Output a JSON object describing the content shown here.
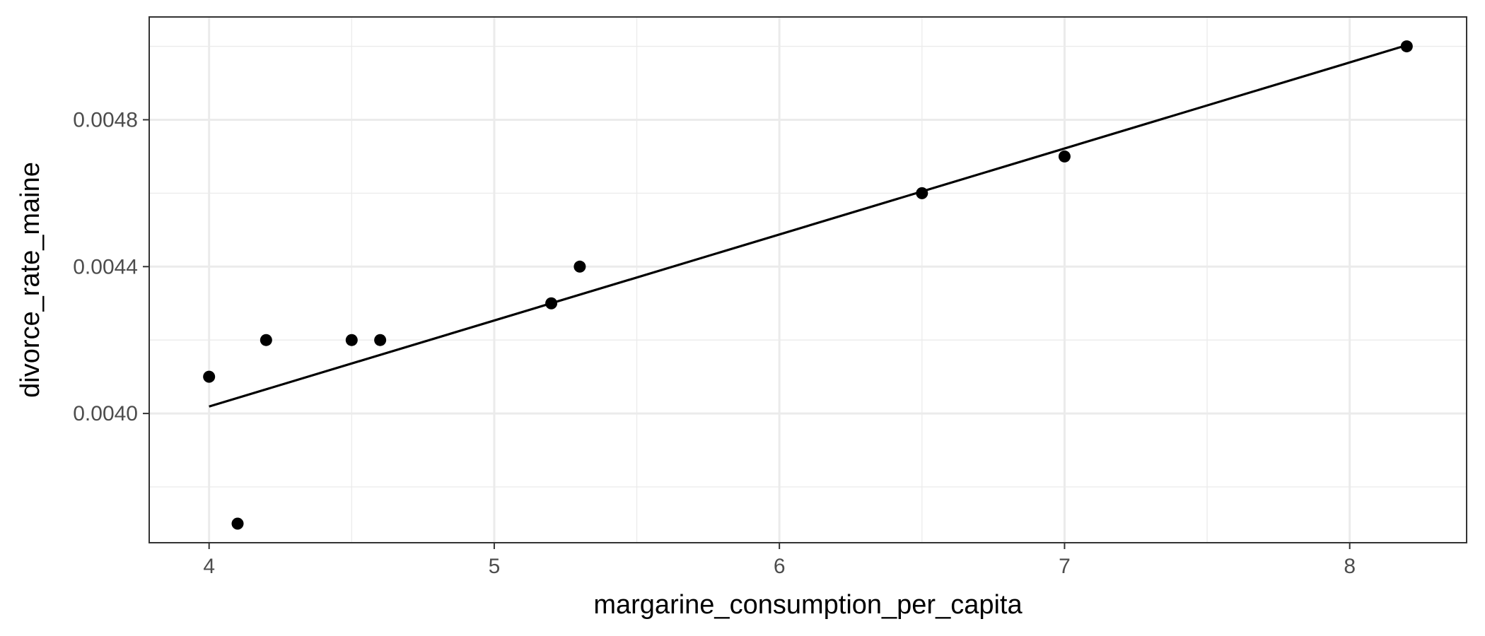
{
  "chart_data": {
    "type": "scatter",
    "title": "",
    "xlabel": "margarine_consumption_per_capita",
    "ylabel": "divorce_rate_maine",
    "xlim": [
      3.79,
      8.41
    ],
    "ylim": [
      0.003648,
      0.00508
    ],
    "x_ticks": [
      4,
      5,
      6,
      7,
      8
    ],
    "x_tick_labels": [
      "4",
      "5",
      "6",
      "7",
      "8"
    ],
    "x_minor_ticks": [
      4.5,
      5.5,
      6.5,
      7.5
    ],
    "y_ticks": [
      0.004,
      0.0044,
      0.0048
    ],
    "y_tick_labels": [
      "0.0040",
      "0.0044",
      "0.0048"
    ],
    "y_minor_ticks": [
      0.0038,
      0.0042,
      0.0046,
      0.005
    ],
    "grid": true,
    "legend": "none",
    "series": [
      {
        "points": [
          {
            "x": 4.0,
            "y": 0.0041
          },
          {
            "x": 4.1,
            "y": 0.0037
          },
          {
            "x": 4.2,
            "y": 0.0042
          },
          {
            "x": 4.5,
            "y": 0.0042
          },
          {
            "x": 4.6,
            "y": 0.0042
          },
          {
            "x": 5.2,
            "y": 0.0043
          },
          {
            "x": 5.3,
            "y": 0.0044
          },
          {
            "x": 6.5,
            "y": 0.0046
          },
          {
            "x": 7.0,
            "y": 0.0047
          },
          {
            "x": 8.2,
            "y": 0.005
          }
        ]
      }
    ],
    "trend_line": {
      "type": "linear-fit",
      "x": [
        4.0,
        8.2
      ],
      "y": [
        0.004019,
        0.005003
      ]
    },
    "colors": {
      "point": "#000000",
      "line": "#000000",
      "grid": "#ebebeb",
      "panel_border": "#333333",
      "tick_label": "#4d4d4d"
    }
  }
}
